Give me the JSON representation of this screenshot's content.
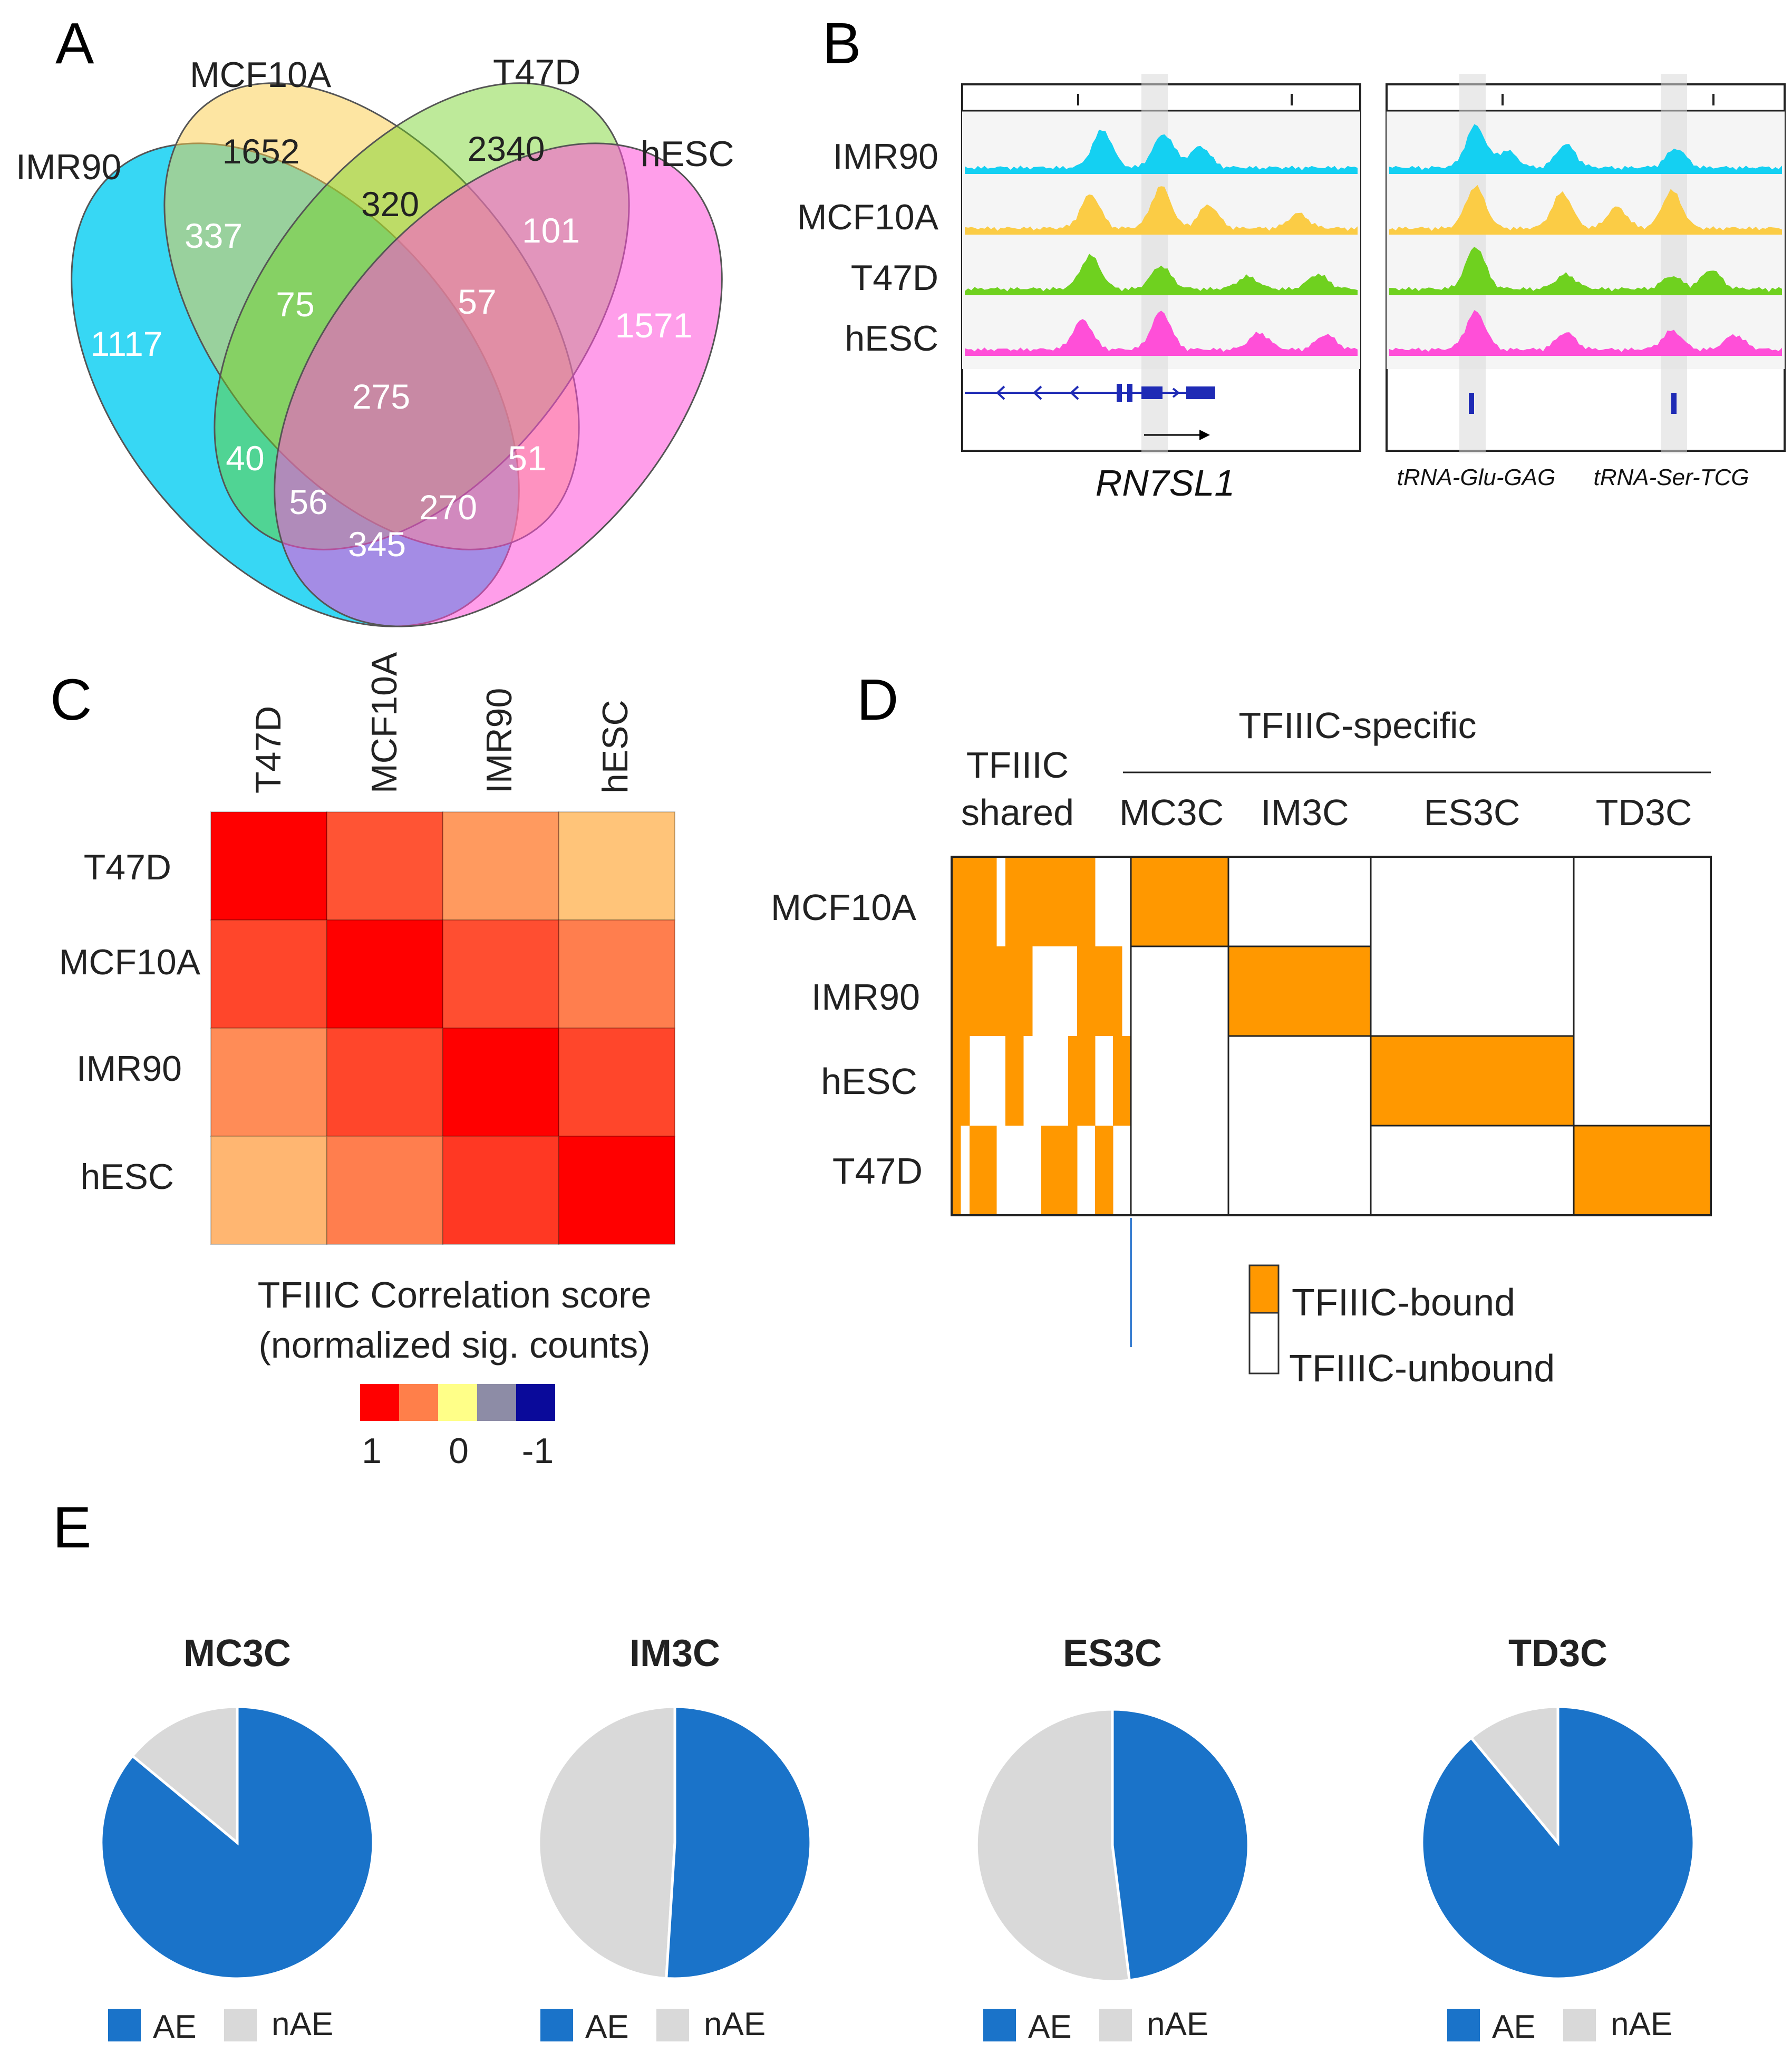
{
  "panels": {
    "a": "A",
    "b": "B",
    "c": "C",
    "d": "D",
    "e": "E"
  },
  "colors": {
    "imr90": "#14d0f2",
    "mcf10a": "#fbcc45",
    "t47d": "#6fd11f",
    "hesc": "#ff4fd8",
    "orange": "#ff9800",
    "ae": "#1a73c9",
    "nae": "#d9d9d9",
    "gene": "#1f2bb5"
  },
  "chart_data": [
    {
      "panel": "A",
      "type": "venn",
      "sets": [
        "IMR90",
        "MCF10A",
        "T47D",
        "hESC"
      ],
      "regions": [
        {
          "sets": [
            "IMR90"
          ],
          "value": 1117
        },
        {
          "sets": [
            "MCF10A"
          ],
          "value": 1652
        },
        {
          "sets": [
            "T47D"
          ],
          "value": 2340
        },
        {
          "sets": [
            "hESC"
          ],
          "value": 1571
        },
        {
          "sets": [
            "IMR90",
            "MCF10A"
          ],
          "value": 337
        },
        {
          "sets": [
            "MCF10A",
            "T47D"
          ],
          "value": 320
        },
        {
          "sets": [
            "T47D",
            "hESC"
          ],
          "value": 101
        },
        {
          "sets": [
            "IMR90",
            "hESC"
          ],
          "value": 345
        },
        {
          "sets": [
            "IMR90",
            "T47D"
          ],
          "value": 40
        },
        {
          "sets": [
            "MCF10A",
            "hESC"
          ],
          "value": 51
        },
        {
          "sets": [
            "IMR90",
            "MCF10A",
            "T47D"
          ],
          "value": 75
        },
        {
          "sets": [
            "MCF10A",
            "T47D",
            "hESC"
          ],
          "value": 57
        },
        {
          "sets": [
            "IMR90",
            "T47D",
            "hESC"
          ],
          "value": 56
        },
        {
          "sets": [
            "IMR90",
            "MCF10A",
            "hESC"
          ],
          "value": 270
        },
        {
          "sets": [
            "IMR90",
            "MCF10A",
            "T47D",
            "hESC"
          ],
          "value": 275
        }
      ]
    },
    {
      "panel": "B",
      "type": "genome_tracks",
      "tracks": [
        "IMR90",
        "MCF10A",
        "T47D",
        "hESC"
      ],
      "loci": [
        {
          "genes": [
            "RN7SL1"
          ],
          "gene_label": "RN7SL1"
        },
        {
          "genes": [
            "tRNA-Glu-GAG",
            "tRNA-Ser-TCG"
          ]
        }
      ]
    },
    {
      "panel": "C",
      "type": "heatmap",
      "columns": [
        "T47D",
        "MCF10A",
        "IMR90",
        "hESC"
      ],
      "rows": [
        "T47D",
        "MCF10A",
        "IMR90",
        "hESC"
      ],
      "matrix": [
        [
          1.0,
          0.7,
          0.45,
          0.3
        ],
        [
          0.75,
          1.0,
          0.72,
          0.55
        ],
        [
          0.5,
          0.75,
          1.0,
          0.75
        ],
        [
          0.35,
          0.55,
          0.8,
          1.0
        ]
      ],
      "legend_title": "TFIIIC Correlation score",
      "legend_subtitle": "(normalized sig. counts)",
      "scale_colors": [
        "#ff0000",
        "#ff7f4a",
        "#ffff88",
        "#8d8ca6",
        "#0a0a9a"
      ],
      "scale_labels": [
        "1",
        "0",
        "-1"
      ]
    },
    {
      "panel": "D",
      "type": "binary_heatmap",
      "header_specific": "TFIIIC-specific",
      "header_shared": [
        "TFIIIC",
        "shared"
      ],
      "columns": [
        "MC3C",
        "IM3C",
        "ES3C",
        "TD3C"
      ],
      "rows": [
        "MCF10A",
        "IMR90",
        "hESC",
        "T47D"
      ],
      "bound": [
        [
          1,
          0,
          0,
          0
        ],
        [
          0,
          1,
          0,
          0
        ],
        [
          0,
          0,
          1,
          0
        ],
        [
          0,
          0,
          0,
          1
        ]
      ],
      "legend": [
        "TFIIIC-bound",
        "TFIIIC-unbound"
      ]
    },
    {
      "panel": "E",
      "type": "pie",
      "legend": [
        "AE",
        "nAE"
      ],
      "charts": [
        {
          "title": "MC3C",
          "AE": 86,
          "nAE": 14
        },
        {
          "title": "IM3C",
          "AE": 51,
          "nAE": 49
        },
        {
          "title": "ES3C",
          "AE": 48,
          "nAE": 52
        },
        {
          "title": "TD3C",
          "AE": 89,
          "nAE": 11
        }
      ]
    }
  ]
}
